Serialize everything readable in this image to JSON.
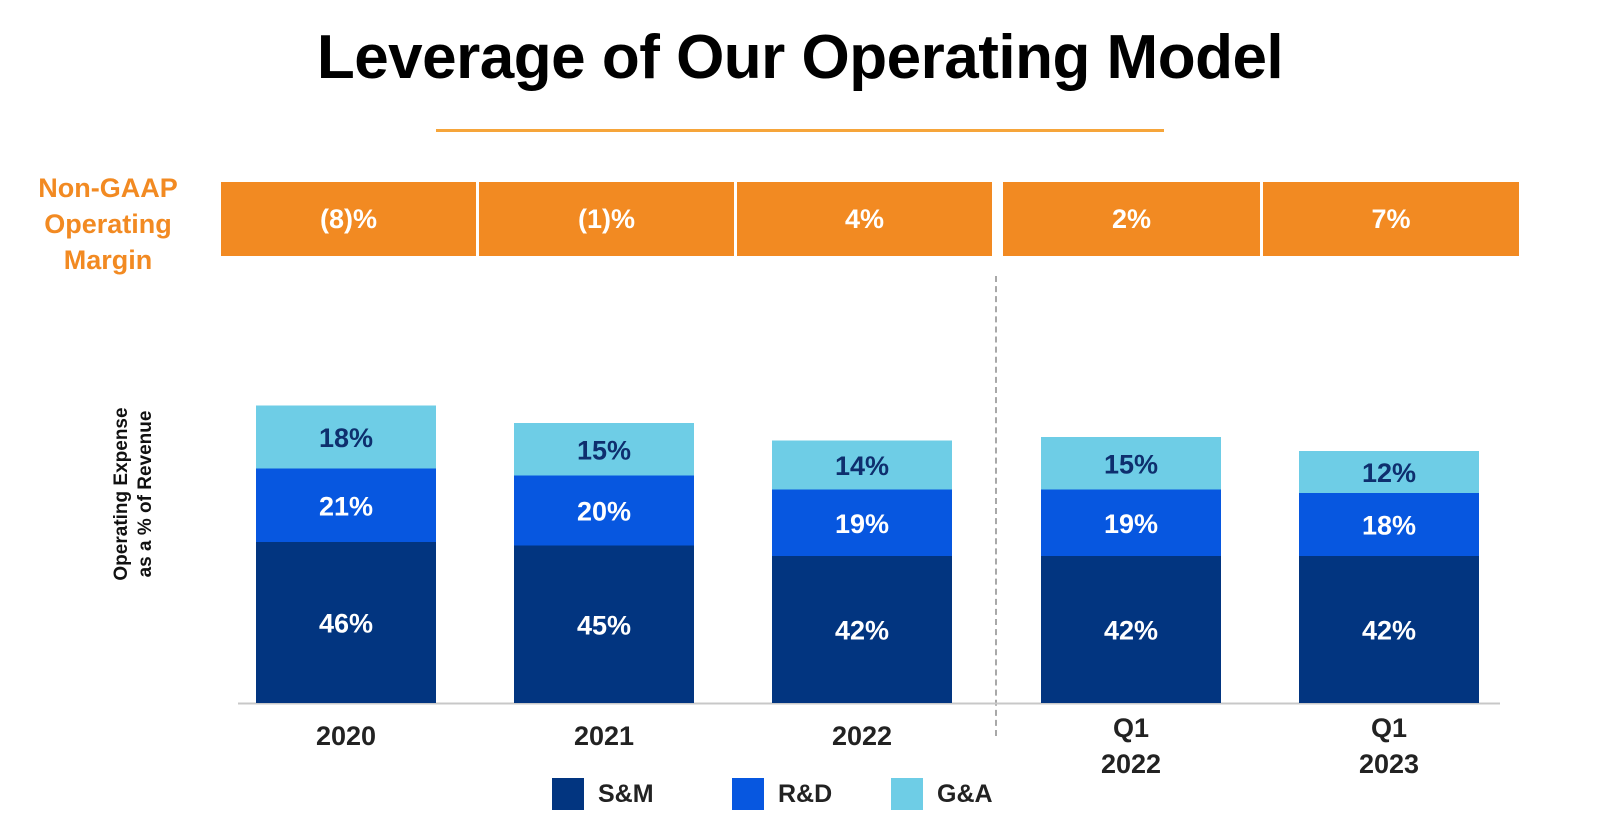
{
  "title": "Leverage of Our Operating Model",
  "margin_row": {
    "label_lines": [
      "Non-GAAP",
      "Operating",
      "Margin"
    ],
    "values": [
      "(8)%",
      "(1)%",
      "4%",
      "2%",
      "7%"
    ]
  },
  "colors": {
    "title_rule": "#f6a53a",
    "margin_fill": "#f28a22",
    "sm": "#023580",
    "rd": "#0757e0",
    "ga": "#6ecde6"
  },
  "chart_data": {
    "type": "bar",
    "stacked": true,
    "ylabel_lines": [
      "Operating Expense",
      "as a % of Revenue"
    ],
    "categories": [
      [
        "2020"
      ],
      [
        "2021"
      ],
      [
        "2022"
      ],
      [
        "Q1",
        "2022"
      ],
      [
        "Q1",
        "2023"
      ]
    ],
    "series": [
      {
        "name": "S&M",
        "values": [
          46,
          45,
          42,
          42,
          42
        ],
        "labels": [
          "46%",
          "45%",
          "42%",
          "42%",
          "42%"
        ]
      },
      {
        "name": "R&D",
        "values": [
          21,
          20,
          19,
          19,
          18
        ],
        "labels": [
          "21%",
          "20%",
          "19%",
          "19%",
          "18%"
        ]
      },
      {
        "name": "G&A",
        "values": [
          18,
          15,
          14,
          15,
          12
        ],
        "labels": [
          "18%",
          "15%",
          "14%",
          "15%",
          "12%"
        ]
      }
    ],
    "legend": "bottom"
  }
}
